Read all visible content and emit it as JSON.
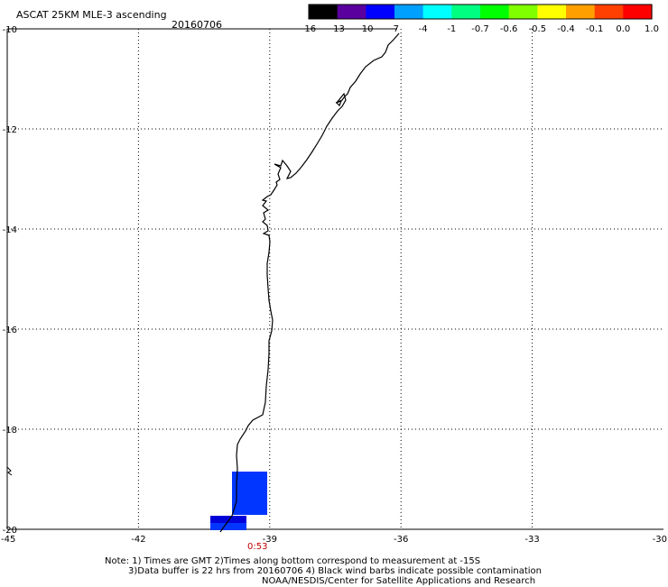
{
  "header": {
    "title": "ASCAT 25KM MLE-3 ascending",
    "date": "20160706"
  },
  "colorbar": {
    "labels": [
      "-16",
      "-13",
      "-10",
      "-7",
      "-4",
      "-1",
      "-0.7",
      "-0.6",
      "-0.5",
      "-0.4",
      "-0.1",
      "0.0",
      "1.0"
    ],
    "colors": [
      "#000000",
      "#5a009e",
      "#0000ff",
      "#00a0ff",
      "#00ffff",
      "#00ff80",
      "#00ff00",
      "#80ff00",
      "#ffff00",
      "#ffa000",
      "#ff4000",
      "#ff0000"
    ]
  },
  "map": {
    "lon_range": [
      -45,
      -30
    ],
    "lat_range": [
      -20,
      -10
    ],
    "lon_ticks": [
      "-45",
      "-42",
      "-39",
      "-36",
      "-33",
      "-30"
    ],
    "lat_ticks": [
      "-10",
      "-12",
      "-14",
      "-16",
      "-18",
      "-20"
    ],
    "swath_color": "#0036ff",
    "swath_dark_color": "#0000d8",
    "time_label": "0:53",
    "time_color": "#c00000"
  },
  "notes": {
    "line1": "Note: 1) Times are GMT 2)Times along bottom correspond to measurement at -15S",
    "line2": "3)Data buffer is 22 hrs from 20160706 4) Black wind barbs indicate possible contamination",
    "line3": "NOAA/NESDIS/Center for Satellite Applications and Research"
  }
}
